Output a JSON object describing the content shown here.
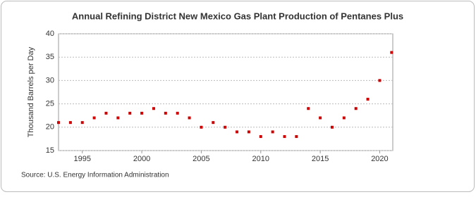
{
  "chart_data": {
    "type": "scatter",
    "title": "Annual Refining District New Mexico Gas Plant Production of Pentanes Plus",
    "y_label": "Thousand Barrels per Day",
    "source": "Source: U.S. Energy Information Administration",
    "x": [
      1993,
      1994,
      1995,
      1996,
      1997,
      1998,
      1999,
      2000,
      2001,
      2002,
      2003,
      2004,
      2005,
      2006,
      2007,
      2008,
      2009,
      2010,
      2011,
      2012,
      2013,
      2014,
      2015,
      2016,
      2017,
      2018,
      2019,
      2020,
      2021
    ],
    "series": [
      {
        "name": "New Mexico",
        "color": "#cc0000",
        "values": [
          21,
          21,
          21,
          22,
          23,
          22,
          23,
          23,
          24,
          23,
          23,
          22,
          20,
          21,
          20,
          19,
          19,
          18,
          19,
          18,
          18,
          24,
          22,
          20,
          22,
          24,
          26,
          30,
          36
        ]
      }
    ],
    "xlim": [
      1993,
      2021.1
    ],
    "xticks": [
      1995,
      2000,
      2005,
      2010,
      2015,
      2020
    ],
    "ylim": [
      15,
      40
    ],
    "yticks": [
      15,
      20,
      25,
      30,
      35,
      40
    ],
    "grid": true
  }
}
